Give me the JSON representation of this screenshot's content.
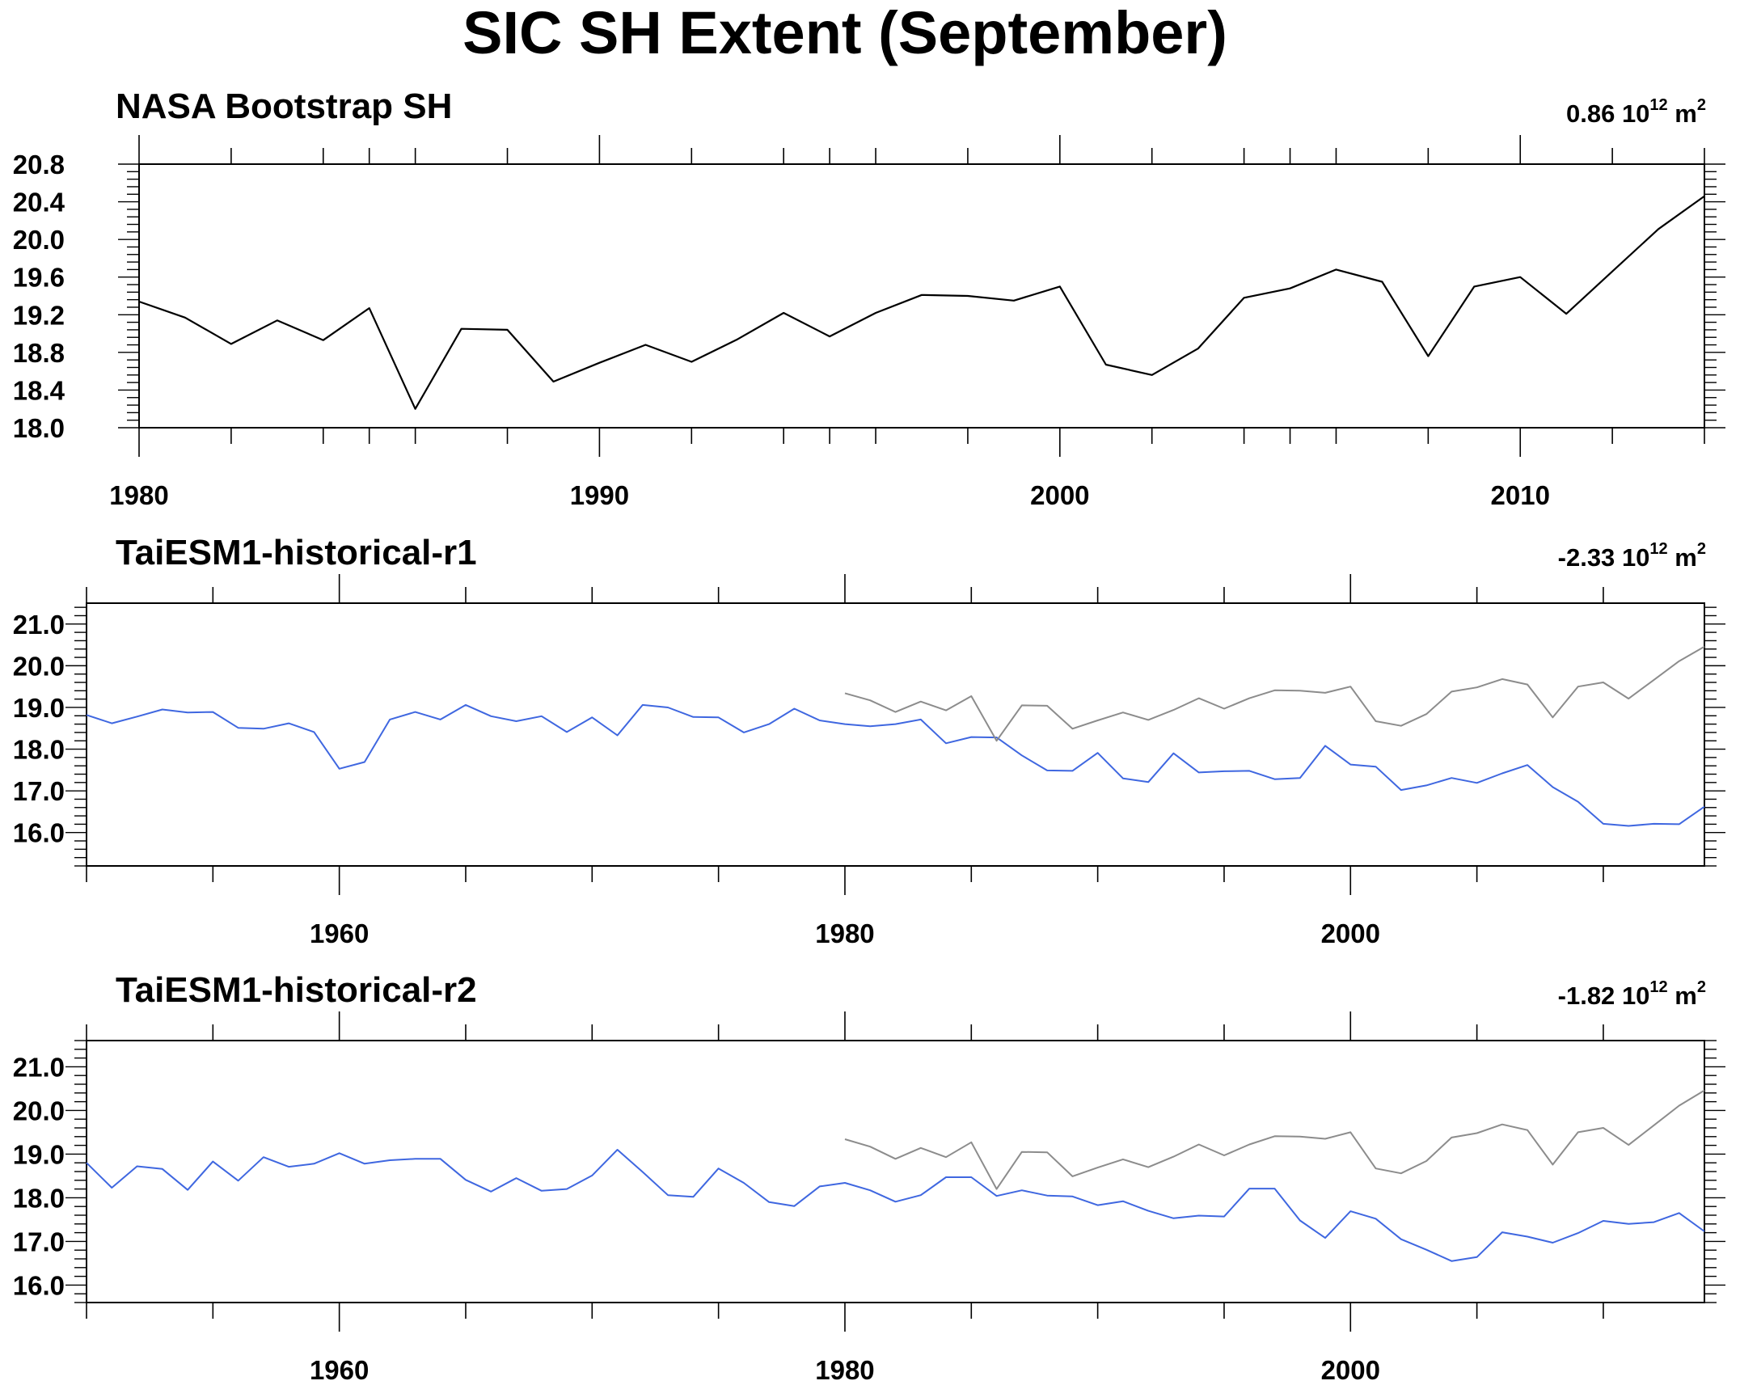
{
  "figure_title": "SIC SH Extent (September)",
  "colors": {
    "obs": "#000000",
    "model": "#3f67e0",
    "obs_overlay": "#8c8c8c",
    "frame": "#000000"
  },
  "chart_data": [
    {
      "type": "line",
      "title": "NASA Bootstrap SH",
      "trend": {
        "value": "0.86",
        "unit": "10",
        "exp": "12",
        "unit2": "m",
        "exp2": "2"
      },
      "xlim": [
        1980,
        2014
      ],
      "ylim": [
        18.0,
        20.8
      ],
      "xticks": [
        1980,
        1990,
        2000,
        2010
      ],
      "yticks": [
        "18.0",
        "18.4",
        "18.8",
        "19.2",
        "19.6",
        "20.0",
        "20.4",
        "20.8"
      ],
      "series": [
        {
          "role": "obs",
          "x": [
            1980,
            1981,
            1982,
            1983,
            1984,
            1985,
            1986,
            1987,
            1988,
            1989,
            1990,
            1991,
            1992,
            1993,
            1994,
            1995,
            1996,
            1997,
            1998,
            1999,
            2000,
            2001,
            2002,
            2003,
            2004,
            2005,
            2006,
            2007,
            2008,
            2009,
            2010,
            2011,
            2012,
            2013,
            2014
          ],
          "values": [
            19.34,
            19.17,
            18.89,
            19.14,
            18.93,
            19.27,
            18.2,
            19.05,
            19.04,
            18.49,
            18.69,
            18.88,
            18.7,
            18.94,
            19.22,
            18.97,
            19.22,
            19.41,
            19.4,
            19.35,
            19.5,
            18.67,
            18.56,
            18.84,
            19.38,
            19.48,
            19.68,
            19.55,
            18.76,
            19.5,
            19.6,
            19.21,
            19.66,
            20.11,
            20.46
          ]
        }
      ]
    },
    {
      "type": "line",
      "title": "TaiESM1-historical-r1",
      "trend": {
        "value": "-2.33",
        "unit": "10",
        "exp": "12",
        "unit2": "m",
        "exp2": "2"
      },
      "xlim": [
        1950,
        2014
      ],
      "ylim": [
        15.2,
        21.5
      ],
      "xticks": [
        1960,
        1980,
        2000
      ],
      "yticks": [
        "16.0",
        "17.0",
        "18.0",
        "19.0",
        "20.0",
        "21.0"
      ],
      "series": [
        {
          "role": "model",
          "x": [
            1950,
            1951,
            1952,
            1953,
            1954,
            1955,
            1956,
            1957,
            1958,
            1959,
            1960,
            1961,
            1962,
            1963,
            1964,
            1965,
            1966,
            1967,
            1968,
            1969,
            1970,
            1971,
            1972,
            1973,
            1974,
            1975,
            1976,
            1977,
            1978,
            1979,
            1980,
            1981,
            1982,
            1983,
            1984,
            1985,
            1986,
            1987,
            1988,
            1989,
            1990,
            1991,
            1992,
            1993,
            1994,
            1995,
            1996,
            1997,
            1998,
            1999,
            2000,
            2001,
            2002,
            2003,
            2004,
            2005,
            2006,
            2007,
            2008,
            2009,
            2010,
            2011,
            2012,
            2013,
            2014
          ],
          "values": [
            18.82,
            18.62,
            18.78,
            18.95,
            18.88,
            18.89,
            18.51,
            18.49,
            18.62,
            18.41,
            17.53,
            17.69,
            18.71,
            18.89,
            18.71,
            19.06,
            18.79,
            18.67,
            18.79,
            18.41,
            18.76,
            18.33,
            19.06,
            19.0,
            18.77,
            18.76,
            18.4,
            18.6,
            18.97,
            18.69,
            18.6,
            18.55,
            18.6,
            18.71,
            18.14,
            18.29,
            18.28,
            17.85,
            17.49,
            17.48,
            17.91,
            17.3,
            17.21,
            17.9,
            17.44,
            17.47,
            17.48,
            17.28,
            17.31,
            18.08,
            17.63,
            17.58,
            17.02,
            17.13,
            17.31,
            17.19,
            17.42,
            17.62,
            17.09,
            16.74,
            16.21,
            16.16,
            16.21,
            16.2,
            16.62
          ]
        },
        {
          "role": "obs_overlay",
          "x": [
            1980,
            1981,
            1982,
            1983,
            1984,
            1985,
            1986,
            1987,
            1988,
            1989,
            1990,
            1991,
            1992,
            1993,
            1994,
            1995,
            1996,
            1997,
            1998,
            1999,
            2000,
            2001,
            2002,
            2003,
            2004,
            2005,
            2006,
            2007,
            2008,
            2009,
            2010,
            2011,
            2012,
            2013,
            2014
          ],
          "values": [
            19.34,
            19.17,
            18.89,
            19.14,
            18.93,
            19.27,
            18.2,
            19.05,
            19.04,
            18.49,
            18.69,
            18.88,
            18.7,
            18.94,
            19.22,
            18.97,
            19.22,
            19.41,
            19.4,
            19.35,
            19.5,
            18.67,
            18.56,
            18.84,
            19.38,
            19.48,
            19.68,
            19.55,
            18.76,
            19.5,
            19.6,
            19.21,
            19.66,
            20.11,
            20.46
          ]
        }
      ]
    },
    {
      "type": "line",
      "title": "TaiESM1-historical-r2",
      "trend": {
        "value": "-1.82",
        "unit": "10",
        "exp": "12",
        "unit2": "m",
        "exp2": "2"
      },
      "xlim": [
        1950,
        2014
      ],
      "ylim": [
        15.6,
        21.6
      ],
      "xticks": [
        1960,
        1980,
        2000
      ],
      "yticks": [
        "16.0",
        "17.0",
        "18.0",
        "19.0",
        "20.0",
        "21.0"
      ],
      "series": [
        {
          "role": "model",
          "x": [
            1950,
            1951,
            1952,
            1953,
            1954,
            1955,
            1956,
            1957,
            1958,
            1959,
            1960,
            1961,
            1962,
            1963,
            1964,
            1965,
            1966,
            1967,
            1968,
            1969,
            1970,
            1971,
            1972,
            1973,
            1974,
            1975,
            1976,
            1977,
            1978,
            1979,
            1980,
            1981,
            1982,
            1983,
            1984,
            1985,
            1986,
            1987,
            1988,
            1989,
            1990,
            1991,
            1992,
            1993,
            1994,
            1995,
            1996,
            1997,
            1998,
            1999,
            2000,
            2001,
            2002,
            2003,
            2004,
            2005,
            2006,
            2007,
            2008,
            2009,
            2010,
            2011,
            2012,
            2013,
            2014
          ],
          "values": [
            18.8,
            18.23,
            18.72,
            18.66,
            18.18,
            18.83,
            18.39,
            18.93,
            18.71,
            18.78,
            19.02,
            18.78,
            18.86,
            18.89,
            18.89,
            18.41,
            18.14,
            18.45,
            18.16,
            18.2,
            18.51,
            19.1,
            18.59,
            18.06,
            18.02,
            18.67,
            18.34,
            17.9,
            17.81,
            18.26,
            18.34,
            18.17,
            17.91,
            18.06,
            18.47,
            18.47,
            18.04,
            18.17,
            18.05,
            18.03,
            17.83,
            17.92,
            17.7,
            17.53,
            17.59,
            17.57,
            18.21,
            18.21,
            17.48,
            17.08,
            17.69,
            17.52,
            17.05,
            16.81,
            16.55,
            16.64,
            17.21,
            17.11,
            16.97,
            17.19,
            17.47,
            17.4,
            17.44,
            17.65,
            17.23
          ]
        },
        {
          "role": "obs_overlay",
          "x": [
            1980,
            1981,
            1982,
            1983,
            1984,
            1985,
            1986,
            1987,
            1988,
            1989,
            1990,
            1991,
            1992,
            1993,
            1994,
            1995,
            1996,
            1997,
            1998,
            1999,
            2000,
            2001,
            2002,
            2003,
            2004,
            2005,
            2006,
            2007,
            2008,
            2009,
            2010,
            2011,
            2012,
            2013,
            2014
          ],
          "values": [
            19.34,
            19.17,
            18.89,
            19.14,
            18.93,
            19.27,
            18.2,
            19.05,
            19.04,
            18.49,
            18.69,
            18.88,
            18.7,
            18.94,
            19.22,
            18.97,
            19.22,
            19.41,
            19.4,
            19.35,
            19.5,
            18.67,
            18.56,
            18.84,
            19.38,
            19.48,
            19.68,
            19.55,
            18.76,
            19.5,
            19.6,
            19.21,
            19.66,
            20.11,
            20.46
          ]
        }
      ]
    }
  ]
}
